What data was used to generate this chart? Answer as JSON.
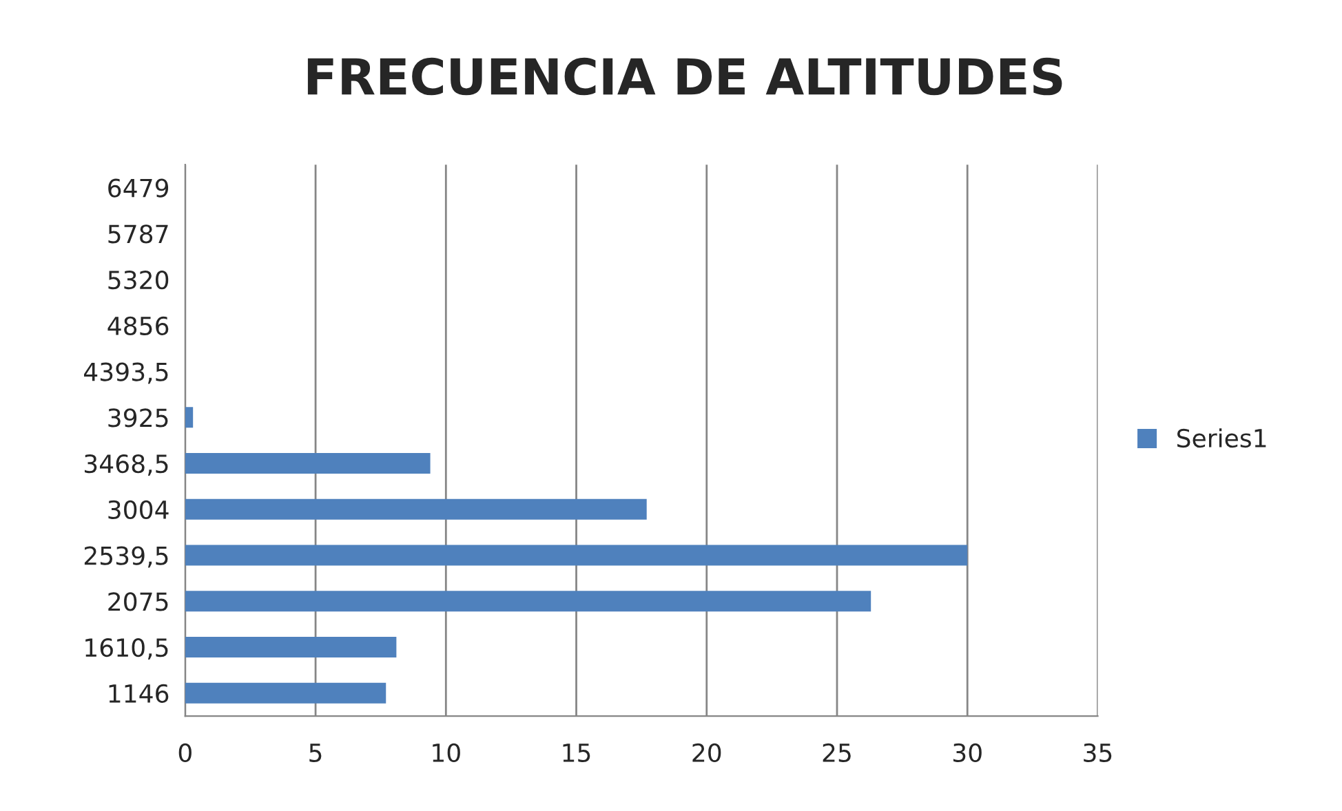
{
  "chart_data": {
    "type": "bar",
    "orientation": "horizontal",
    "title": "FRECUENCIA DE ALTITUDES",
    "categories": [
      "6479",
      "5787",
      "5320",
      "4856",
      "4393,5",
      "3925",
      "3468,5",
      "3004",
      "2539,5",
      "2075",
      "1610,5",
      "1146"
    ],
    "series": [
      {
        "name": "Series1",
        "color": "#4f81bd",
        "values": [
          0,
          0,
          0,
          0,
          0,
          0.3,
          9.4,
          17.7,
          30,
          26.3,
          8.1,
          7.7
        ]
      }
    ],
    "xlim": [
      0,
      35
    ],
    "xticks": [
      0,
      5,
      10,
      15,
      20,
      25,
      30,
      35
    ],
    "grid": "x",
    "legend": "right"
  }
}
